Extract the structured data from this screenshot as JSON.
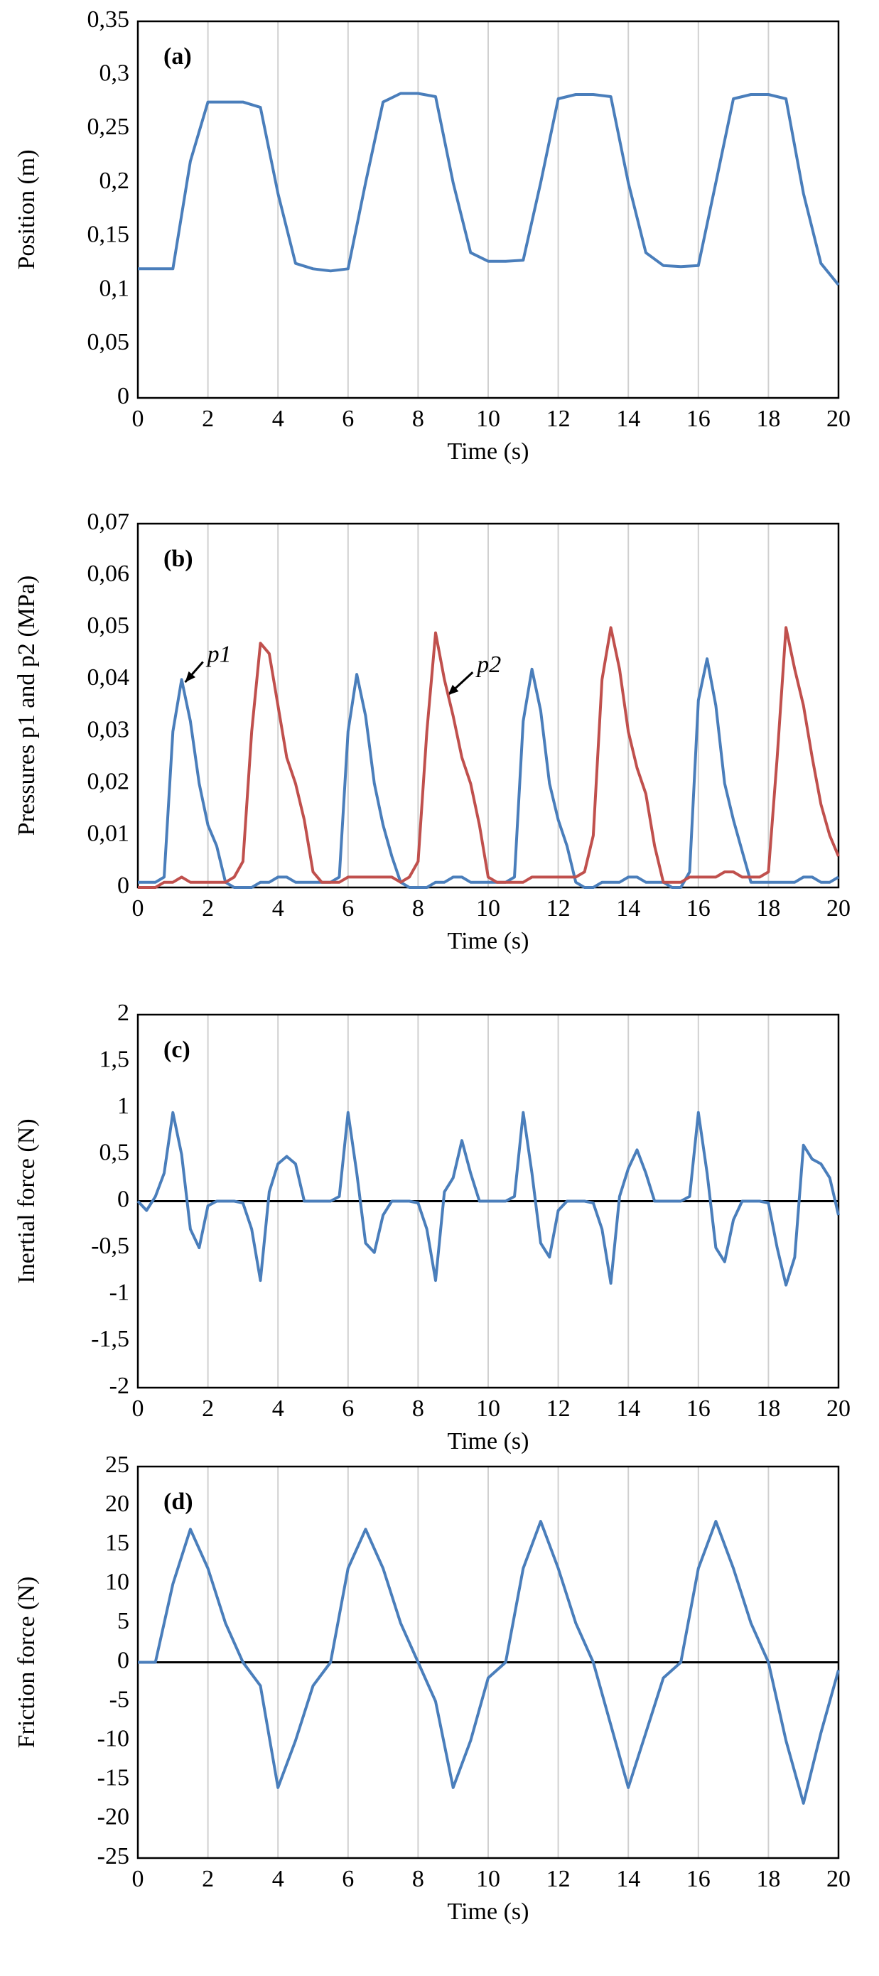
{
  "chart_data": [
    {
      "type": "line",
      "label": "(a)",
      "xlabel": "Time (s)",
      "ylabel": "Position (m)",
      "x": [
        0,
        0.5,
        1,
        1.5,
        2,
        2.5,
        3,
        3.5,
        4,
        4.5,
        5,
        5.5,
        6,
        6.5,
        7,
        7.5,
        8,
        8.5,
        9,
        9.5,
        10,
        10.5,
        11,
        11.5,
        12,
        12.5,
        13,
        13.5,
        14,
        14.5,
        15,
        15.5,
        16,
        16.5,
        17,
        17.5,
        18,
        18.5,
        19,
        19.5,
        20
      ],
      "series": [
        {
          "color": "#4a7ebb",
          "values": [
            0.12,
            0.12,
            0.12,
            0.22,
            0.275,
            0.275,
            0.275,
            0.27,
            0.19,
            0.125,
            0.12,
            0.118,
            0.12,
            0.2,
            0.275,
            0.283,
            0.283,
            0.28,
            0.2,
            0.135,
            0.127,
            0.127,
            0.128,
            0.2,
            0.278,
            0.282,
            0.282,
            0.28,
            0.2,
            0.135,
            0.123,
            0.122,
            0.123,
            0.2,
            0.278,
            0.282,
            0.282,
            0.278,
            0.19,
            0.125,
            0.105
          ]
        }
      ],
      "xlim": [
        0,
        20
      ],
      "xticks": [
        0,
        2,
        4,
        6,
        8,
        10,
        12,
        14,
        16,
        18,
        20
      ],
      "ylim": [
        0,
        0.35
      ],
      "yticks": [
        0,
        {
          "value": 0.05,
          "label": "0,05"
        },
        {
          "value": 0.1,
          "label": "0,1"
        },
        {
          "value": 0.15,
          "label": "0,15"
        },
        {
          "value": 0.2,
          "label": "0,2"
        },
        {
          "value": 0.25,
          "label": "0,25"
        },
        {
          "value": 0.3,
          "label": "0,3"
        },
        {
          "value": 0.35,
          "label": "0,35"
        }
      ],
      "grid": "x",
      "zero_line": false
    },
    {
      "type": "line",
      "label": "(b)",
      "xlabel": "Time (s)",
      "ylabel": "Pressures p1 and p2 (MPa)",
      "x": [
        0,
        0.25,
        0.5,
        0.75,
        1,
        1.25,
        1.5,
        1.75,
        2,
        2.25,
        2.5,
        2.75,
        3,
        3.25,
        3.5,
        3.75,
        4,
        4.25,
        4.5,
        4.75,
        5,
        5.25,
        5.5,
        5.75,
        6,
        6.25,
        6.5,
        6.75,
        7,
        7.25,
        7.5,
        7.75,
        8,
        8.25,
        8.5,
        8.75,
        9,
        9.25,
        9.5,
        9.75,
        10,
        10.25,
        10.5,
        10.75,
        11,
        11.25,
        11.5,
        11.75,
        12,
        12.25,
        12.5,
        12.75,
        13,
        13.25,
        13.5,
        13.75,
        14,
        14.25,
        14.5,
        14.75,
        15,
        15.25,
        15.5,
        15.75,
        16,
        16.25,
        16.5,
        16.75,
        17,
        17.25,
        17.5,
        17.75,
        18,
        18.25,
        18.5,
        18.75,
        19,
        19.25,
        19.5,
        19.75,
        20
      ],
      "series": [
        {
          "name": "p1",
          "color": "#4a7ebb",
          "values": [
            0.001,
            0.001,
            0.001,
            0.002,
            0.03,
            0.04,
            0.032,
            0.02,
            0.012,
            0.008,
            0.001,
            0,
            0,
            0,
            0.001,
            0.001,
            0.002,
            0.002,
            0.001,
            0.001,
            0.001,
            0.001,
            0.001,
            0.002,
            0.03,
            0.041,
            0.033,
            0.02,
            0.012,
            0.006,
            0.001,
            0,
            0,
            0,
            0.001,
            0.001,
            0.002,
            0.002,
            0.001,
            0.001,
            0.001,
            0.001,
            0.001,
            0.002,
            0.032,
            0.042,
            0.034,
            0.02,
            0.013,
            0.008,
            0.001,
            0,
            0,
            0.001,
            0.001,
            0.001,
            0.002,
            0.002,
            0.001,
            0.001,
            0.001,
            0,
            0,
            0.003,
            0.036,
            0.044,
            0.035,
            0.02,
            0.013,
            0.007,
            0.001,
            0.001,
            0.001,
            0.001,
            0.001,
            0.001,
            0.002,
            0.002,
            0.001,
            0.001,
            0.002
          ]
        },
        {
          "name": "p2",
          "color": "#c0504d",
          "values": [
            0,
            0,
            0,
            0.001,
            0.001,
            0.002,
            0.001,
            0.001,
            0.001,
            0.001,
            0.001,
            0.002,
            0.005,
            0.03,
            0.047,
            0.045,
            0.035,
            0.025,
            0.02,
            0.013,
            0.003,
            0.001,
            0.001,
            0.001,
            0.002,
            0.002,
            0.002,
            0.002,
            0.002,
            0.002,
            0.001,
            0.002,
            0.005,
            0.03,
            0.049,
            0.04,
            0.033,
            0.025,
            0.02,
            0.012,
            0.002,
            0.001,
            0.001,
            0.001,
            0.001,
            0.002,
            0.002,
            0.002,
            0.002,
            0.002,
            0.002,
            0.003,
            0.01,
            0.04,
            0.05,
            0.042,
            0.03,
            0.023,
            0.018,
            0.008,
            0.001,
            0.001,
            0.001,
            0.002,
            0.002,
            0.002,
            0.002,
            0.003,
            0.003,
            0.002,
            0.002,
            0.002,
            0.003,
            0.025,
            0.05,
            0.042,
            0.035,
            0.025,
            0.016,
            0.01,
            0.006
          ]
        }
      ],
      "xlim": [
        0,
        20
      ],
      "xticks": [
        0,
        2,
        4,
        6,
        8,
        10,
        12,
        14,
        16,
        18,
        20
      ],
      "ylim": [
        0,
        0.07
      ],
      "yticks": [
        0,
        {
          "value": 0.01,
          "label": "0,01"
        },
        {
          "value": 0.02,
          "label": "0,02"
        },
        {
          "value": 0.03,
          "label": "0,03"
        },
        {
          "value": 0.04,
          "label": "0,04"
        },
        {
          "value": 0.05,
          "label": "0,05"
        },
        {
          "value": 0.06,
          "label": "0,06"
        },
        {
          "value": 0.07,
          "label": "0,07"
        }
      ],
      "grid": "x",
      "zero_line": false
    },
    {
      "type": "line",
      "label": "(c)",
      "xlabel": "Time (s)",
      "ylabel": "Inertial force (N)",
      "x": [
        0,
        0.25,
        0.5,
        0.75,
        1,
        1.25,
        1.5,
        1.75,
        2,
        2.25,
        2.5,
        2.75,
        3,
        3.25,
        3.5,
        3.75,
        4,
        4.25,
        4.5,
        4.75,
        5,
        5.25,
        5.5,
        5.75,
        6,
        6.25,
        6.5,
        6.75,
        7,
        7.25,
        7.5,
        7.75,
        8,
        8.25,
        8.5,
        8.75,
        9,
        9.25,
        9.5,
        9.75,
        10,
        10.25,
        10.5,
        10.75,
        11,
        11.25,
        11.5,
        11.75,
        12,
        12.25,
        12.5,
        12.75,
        13,
        13.25,
        13.5,
        13.75,
        14,
        14.25,
        14.5,
        14.75,
        15,
        15.25,
        15.5,
        15.75,
        16,
        16.25,
        16.5,
        16.75,
        17,
        17.25,
        17.5,
        17.75,
        18,
        18.25,
        18.5,
        18.75,
        19,
        19.25,
        19.5,
        19.75,
        20
      ],
      "series": [
        {
          "color": "#4a7ebb",
          "values": [
            0,
            -0.1,
            0.05,
            0.3,
            0.95,
            0.5,
            -0.3,
            -0.5,
            -0.05,
            0,
            0,
            0,
            -0.02,
            -0.3,
            -0.85,
            0.1,
            0.4,
            0.48,
            0.4,
            0,
            0,
            0,
            0,
            0.05,
            0.95,
            0.3,
            -0.45,
            -0.55,
            -0.15,
            0,
            0,
            0,
            -0.02,
            -0.3,
            -0.85,
            0.1,
            0.25,
            0.65,
            0.3,
            0,
            0,
            0,
            0,
            0.05,
            0.95,
            0.3,
            -0.45,
            -0.6,
            -0.1,
            0,
            0,
            0,
            -0.02,
            -0.3,
            -0.88,
            0.05,
            0.35,
            0.55,
            0.3,
            0,
            0,
            0,
            0,
            0.05,
            0.95,
            0.3,
            -0.5,
            -0.65,
            -0.2,
            0,
            0,
            0,
            -0.02,
            -0.5,
            -0.9,
            -0.6,
            0.6,
            0.45,
            0.4,
            0.25,
            -0.15
          ]
        }
      ],
      "xlim": [
        0,
        20
      ],
      "xticks": [
        0,
        2,
        4,
        6,
        8,
        10,
        12,
        14,
        16,
        18,
        20
      ],
      "ylim": [
        -2,
        2
      ],
      "yticks": [
        -2,
        {
          "value": -1.5,
          "label": "-1,5"
        },
        -1,
        {
          "value": -0.5,
          "label": "-0,5"
        },
        0,
        {
          "value": 0.5,
          "label": "0,5"
        },
        1,
        {
          "value": 1.5,
          "label": "1,5"
        },
        2
      ],
      "grid": "x",
      "zero_line": true
    },
    {
      "type": "line",
      "label": "(d)",
      "xlabel": "Time (s)",
      "ylabel": "Friction force (N)",
      "x": [
        0,
        0.5,
        1,
        1.5,
        2,
        2.5,
        3,
        3.5,
        4,
        4.5,
        5,
        5.5,
        6,
        6.5,
        7,
        7.5,
        8,
        8.5,
        9,
        9.5,
        10,
        10.5,
        11,
        11.5,
        12,
        12.5,
        13,
        13.5,
        14,
        14.5,
        15,
        15.5,
        16,
        16.5,
        17,
        17.5,
        18,
        18.5,
        19,
        19.5,
        20
      ],
      "series": [
        {
          "color": "#4a7ebb",
          "values": [
            0,
            0,
            10,
            17,
            12,
            5,
            0,
            -3,
            -16,
            -10,
            -3,
            0,
            12,
            17,
            12,
            5,
            0,
            -5,
            -16,
            -10,
            -2,
            0,
            12,
            18,
            12,
            5,
            0,
            -8,
            -16,
            -9,
            -2,
            0,
            12,
            18,
            12,
            5,
            0,
            -10,
            -18,
            -9,
            -1
          ]
        }
      ],
      "xlim": [
        0,
        20
      ],
      "xticks": [
        0,
        2,
        4,
        6,
        8,
        10,
        12,
        14,
        16,
        18,
        20
      ],
      "ylim": [
        -25,
        25
      ],
      "yticks": [
        -25,
        -20,
        -15,
        -10,
        -5,
        0,
        5,
        10,
        15,
        20,
        25
      ],
      "grid": "x",
      "zero_line": true
    }
  ]
}
